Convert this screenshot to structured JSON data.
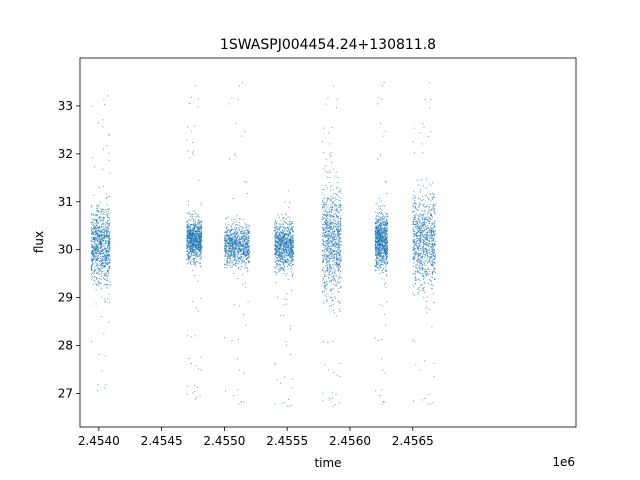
{
  "chart_data": {
    "type": "scatter",
    "title": "1SWASPJ004454.24+130811.8",
    "xlabel": "time",
    "ylabel": "flux",
    "x_offset_label": "1e6",
    "x_scale_factor": 1000000,
    "xlim": [
      2453850,
      2457800
    ],
    "ylim": [
      26.3,
      34.0
    ],
    "x_ticks": [
      2454000,
      2454500,
      2455000,
      2455500,
      2456000,
      2456500
    ],
    "x_tick_labels": [
      "2.4540",
      "2.4545",
      "2.4550",
      "2.4555",
      "2.4560",
      "2.4565"
    ],
    "y_ticks": [
      27,
      28,
      29,
      30,
      31,
      32,
      33
    ],
    "y_tick_labels": [
      "27",
      "28",
      "29",
      "30",
      "31",
      "32",
      "33"
    ],
    "grid": false,
    "legend": "none",
    "marker_color": "#1f77b4",
    "observing_seasons": [
      {
        "start": 2453940,
        "end": 2454090,
        "center_flux": 30.1,
        "spread": 0.55,
        "min_flux": 26.95,
        "max_flux": 33.3
      },
      {
        "start": 2454700,
        "end": 2454820,
        "center_flux": 30.2,
        "spread": 0.3,
        "min_flux": 26.8,
        "max_flux": 33.6
      },
      {
        "start": 2455000,
        "end": 2455200,
        "center_flux": 30.1,
        "spread": 0.3,
        "min_flux": 26.7,
        "max_flux": 33.6
      },
      {
        "start": 2455400,
        "end": 2455550,
        "center_flux": 30.1,
        "spread": 0.35,
        "min_flux": 26.65,
        "max_flux": 31.3
      },
      {
        "start": 2455780,
        "end": 2455930,
        "center_flux": 30.2,
        "spread": 0.8,
        "min_flux": 26.65,
        "max_flux": 33.6
      },
      {
        "start": 2456200,
        "end": 2456300,
        "center_flux": 30.2,
        "spread": 0.4,
        "min_flux": 26.7,
        "max_flux": 33.6
      },
      {
        "start": 2456500,
        "end": 2456680,
        "center_flux": 30.2,
        "spread": 0.7,
        "min_flux": 26.65,
        "max_flux": 33.6
      }
    ]
  }
}
